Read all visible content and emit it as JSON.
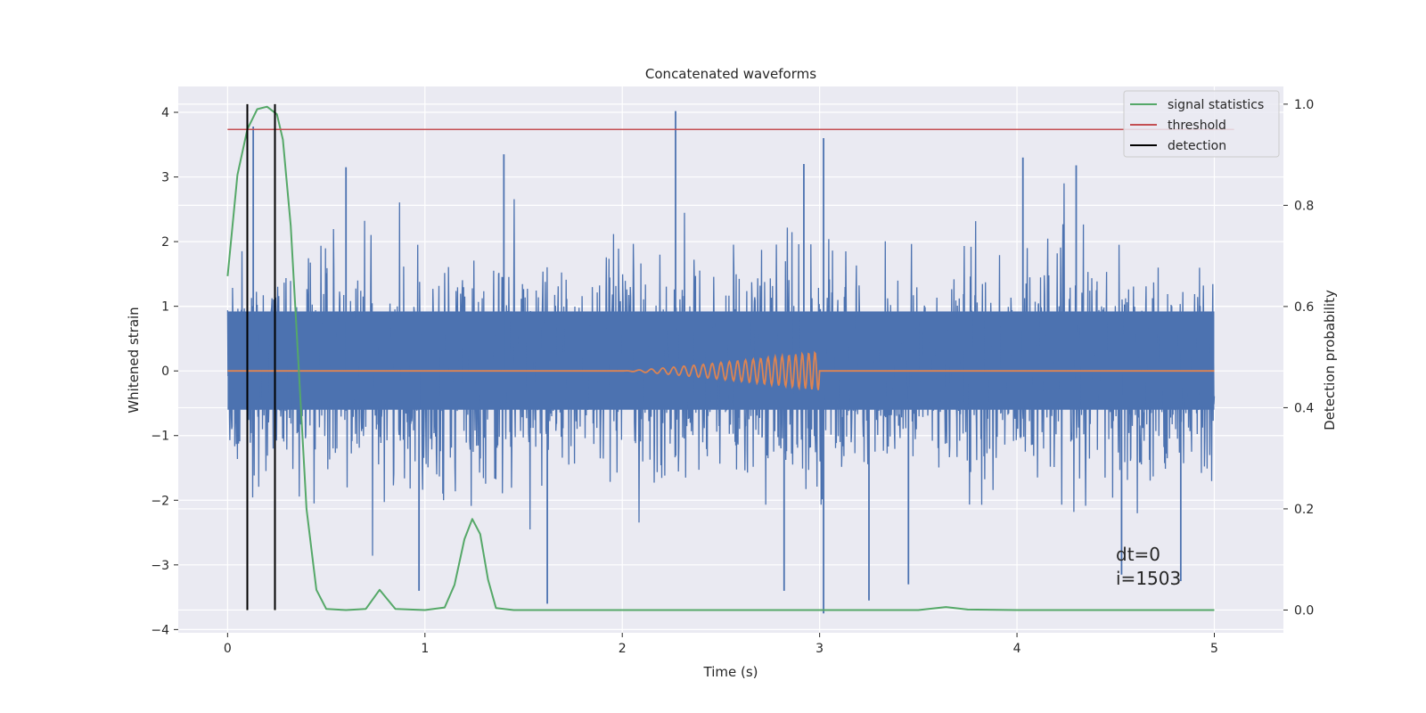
{
  "chart_data": {
    "type": "line",
    "title": "Concatenated waveforms",
    "xlabel": "Time (s)",
    "ylabel": "Whitened strain",
    "ylabel_right": "Detection probability",
    "xlim": [
      -0.25,
      5.35
    ],
    "ylim": [
      -4.05,
      4.4
    ],
    "ylim_right": [
      -0.045,
      1.035
    ],
    "xticks": [
      "0",
      "1",
      "2",
      "3",
      "4",
      "5"
    ],
    "xtick_values": [
      0,
      1,
      2,
      3,
      4,
      5
    ],
    "yticks": [
      "−4",
      "−3",
      "−2",
      "−1",
      "0",
      "1",
      "2",
      "3",
      "4"
    ],
    "ytick_values": [
      -4,
      -3,
      -2,
      -1,
      0,
      1,
      2,
      3,
      4
    ],
    "yticks_right": [
      "0.0",
      "0.2",
      "0.4",
      "0.6",
      "0.8",
      "1.0"
    ],
    "ytick_values_right": [
      0.0,
      0.2,
      0.4,
      0.6,
      0.8,
      1.0
    ],
    "grid": true,
    "legend_position": "top-right",
    "series": [
      {
        "name": "",
        "kind": "whitened-strain-noise",
        "axis": "left",
        "color": "#4c72b0",
        "x_range": [
          0,
          5
        ],
        "core_band": [
          -0.6,
          0.92
        ],
        "positive_peaks": [
          [
            0.13,
            3.78
          ],
          [
            0.6,
            3.15
          ],
          [
            1.4,
            3.35
          ],
          [
            2.27,
            4.02
          ],
          [
            2.92,
            3.2
          ],
          [
            3.02,
            3.6
          ],
          [
            4.03,
            3.3
          ],
          [
            4.3,
            3.18
          ]
        ],
        "negative_peaks": [
          [
            0.97,
            -3.4
          ],
          [
            1.62,
            -3.6
          ],
          [
            2.82,
            -3.4
          ],
          [
            3.02,
            -3.75
          ],
          [
            3.25,
            -3.55
          ],
          [
            3.45,
            -3.3
          ],
          [
            4.53,
            -3.15
          ],
          [
            4.83,
            -3.25
          ]
        ]
      },
      {
        "name": "",
        "kind": "injected-chirp",
        "axis": "left",
        "color": "#dd8452",
        "x_range": [
          0,
          5
        ],
        "chirp_start": 2.0,
        "chirp_end": 3.0,
        "max_amplitude": 0.3
      },
      {
        "name": "signal statistics",
        "axis": "right",
        "color": "#55a868",
        "x": [
          0.0,
          0.05,
          0.1,
          0.15,
          0.2,
          0.25,
          0.28,
          0.32,
          0.36,
          0.4,
          0.45,
          0.5,
          0.6,
          0.7,
          0.77,
          0.85,
          1.0,
          1.1,
          1.15,
          1.2,
          1.24,
          1.28,
          1.32,
          1.36,
          1.45,
          2.0,
          3.0,
          3.5,
          3.64,
          3.75,
          4.0,
          5.0
        ],
        "y": [
          0.66,
          0.86,
          0.95,
          0.99,
          0.995,
          0.98,
          0.93,
          0.76,
          0.48,
          0.2,
          0.04,
          0.002,
          0.0,
          0.002,
          0.04,
          0.002,
          0.0,
          0.005,
          0.05,
          0.14,
          0.18,
          0.15,
          0.06,
          0.004,
          0.0,
          0.0,
          0.0,
          0.0,
          0.006,
          0.001,
          0.0,
          0.0
        ]
      },
      {
        "name": "threshold",
        "axis": "right",
        "color": "#c44e52",
        "x": [
          0,
          5.1
        ],
        "y": [
          0.95,
          0.95
        ]
      },
      {
        "name": "detection",
        "axis": "right",
        "color": "#000000",
        "vlines_x": [
          0.1,
          0.24
        ],
        "y_range": [
          0.0,
          1.0
        ]
      }
    ],
    "legend": [
      "signal statistics",
      "threshold",
      "detection"
    ],
    "annotation_lines": [
      "dt=0",
      "i=1503"
    ]
  }
}
